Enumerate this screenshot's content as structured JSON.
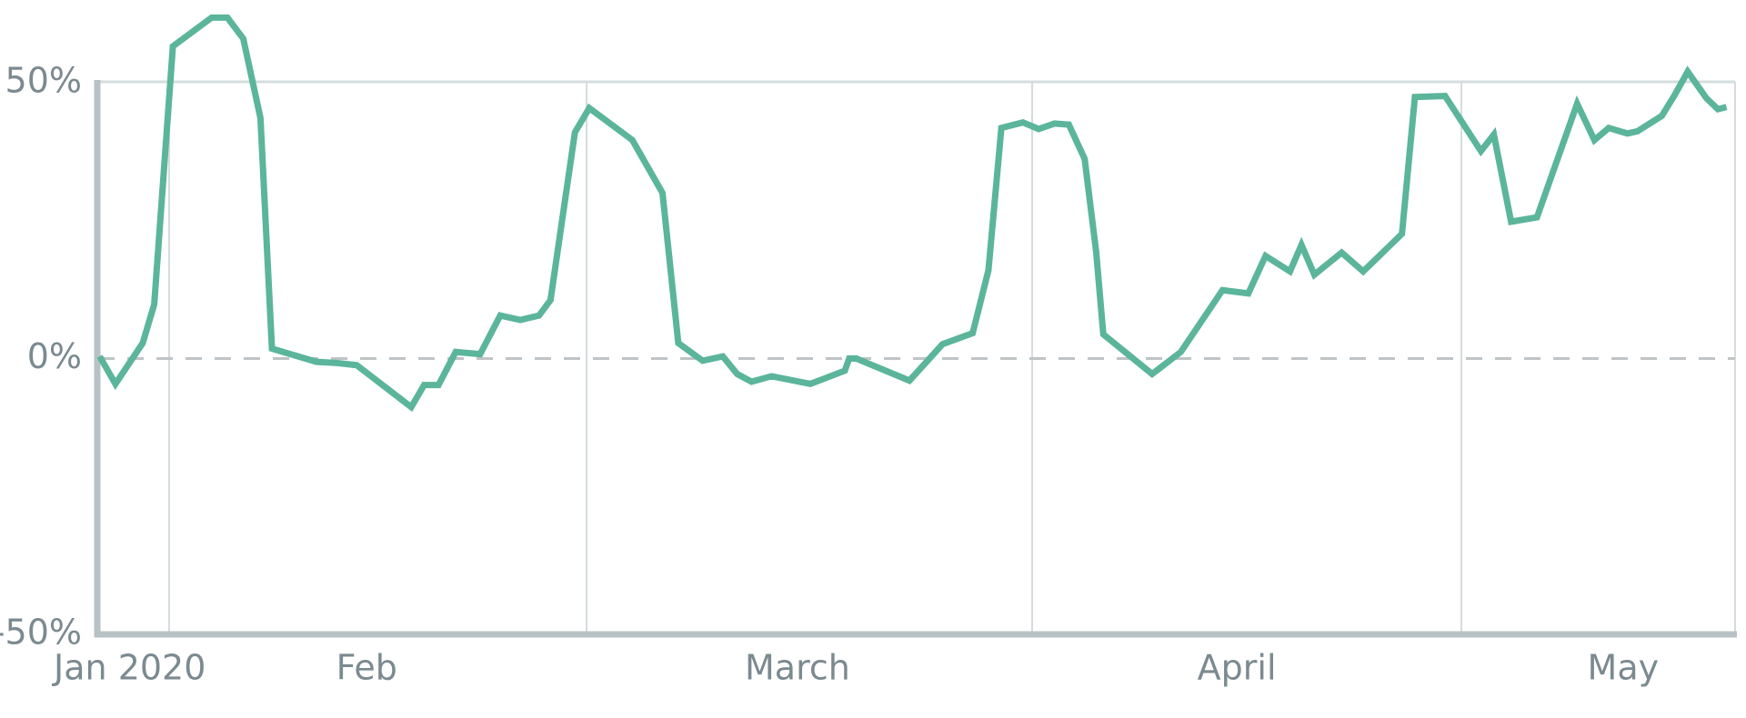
{
  "chart_data": {
    "type": "line",
    "x": [
      26.1,
      27.2,
      29.1,
      29.9,
      31.2,
      33.9,
      35.0,
      36.1,
      37.3,
      38.1,
      41.2,
      42.6,
      44.0,
      47.8,
      48.7,
      49.7,
      50.9,
      52.6,
      54.0,
      55.4,
      56.7,
      57.5,
      59.2,
      60.2,
      63.2,
      65.3,
      66.4,
      68.1,
      69.5,
      70.5,
      71.5,
      72.9,
      75.6,
      78.0,
      78.3,
      78.8,
      82.5,
      84.8,
      86.9,
      88.0,
      88.9,
      90.4,
      91.5,
      92.6,
      93.6,
      94.7,
      95.5,
      96.0,
      99.4,
      101.4,
      104.3,
      106.1,
      107.3,
      109.0,
      109.8,
      110.7,
      112.6,
      114.1,
      116.8,
      117.7,
      119.8,
      122.3,
      123.2,
      124.4,
      126.2,
      129.0,
      130.2,
      131.2,
      132.5,
      133.2,
      134.9,
      135.8,
      136.7,
      138.0,
      138.8,
      139.4
    ],
    "series": [
      {
        "color": "#5bb59a",
        "values": [
          0.4,
          -4.6,
          2.8,
          9.8,
          56.6,
          61.8,
          61.8,
          58,
          43.6,
          1.8,
          -0.6,
          -0.8,
          -1.2,
          -8.8,
          -4.8,
          -4.8,
          1.2,
          0.8,
          7.8,
          7,
          7.8,
          10.6,
          41,
          45.4,
          39.6,
          30,
          2.8,
          -0.4,
          0.4,
          -2.8,
          -4.2,
          -3.2,
          -4.6,
          -2.2,
          0,
          0,
          -4,
          2.6,
          4.6,
          16,
          41.8,
          42.8,
          41.6,
          42.6,
          42.4,
          36.2,
          19.4,
          4.4,
          -2.8,
          1.2,
          12.4,
          11.8,
          18.6,
          15.8,
          20.6,
          15.2,
          19.2,
          15.8,
          22.6,
          47.4,
          47.6,
          37.6,
          40.6,
          24.8,
          25.6,
          46.2,
          39.6,
          41.8,
          40.8,
          41.2,
          44,
          47.8,
          52,
          47.2,
          45.2,
          45.6
        ]
      }
    ],
    "xlim": [
      26,
      140
    ],
    "xticks": [
      {
        "value": 28.2,
        "label": "Jan 2020"
      },
      {
        "value": 44.7,
        "label": "Feb"
      },
      {
        "value": 74.7,
        "label": "March"
      },
      {
        "value": 105.3,
        "label": "April"
      },
      {
        "value": 132.2,
        "label": "May"
      }
    ],
    "ylim": [
      -50,
      50
    ],
    "yticks": [
      {
        "value": 50,
        "label": "50%"
      },
      {
        "value": 0,
        "label": "0%"
      },
      {
        "value": -50,
        "label": "-50%"
      }
    ]
  }
}
